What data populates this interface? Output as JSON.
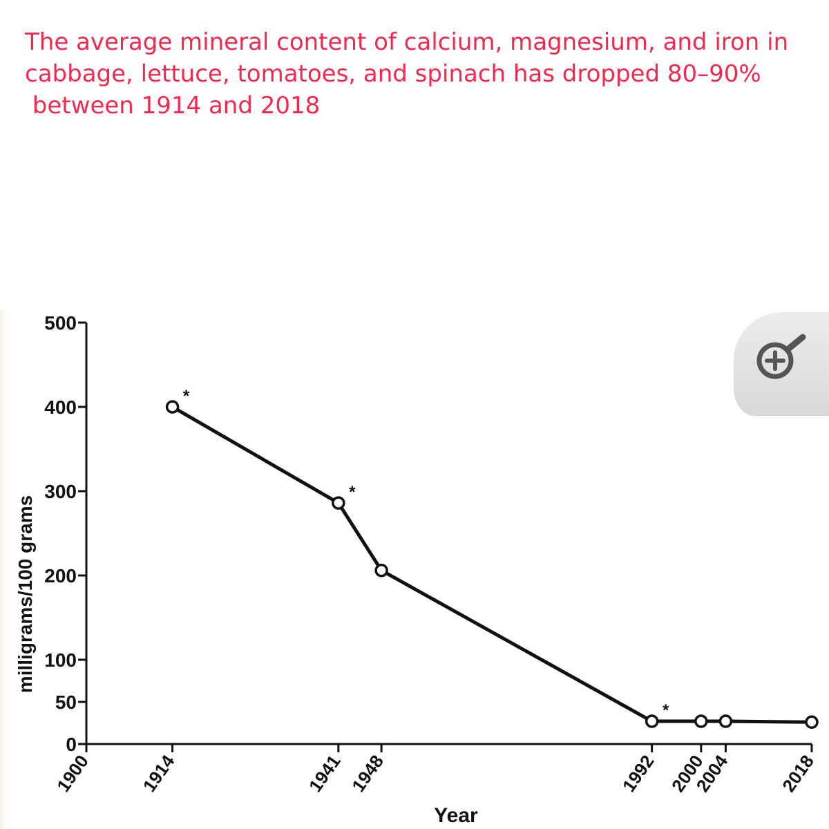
{
  "headline": {
    "line1": "The average mineral content of calcium, magnesium, and iron in",
    "line2": "cabbage, lettuce, tomatoes, and spinach has dropped 80–90%",
    "line3": " between 1914 and 2018"
  },
  "zoom_button": {
    "icon": "magnify-plus-icon"
  },
  "colors": {
    "headline": "#f2294f",
    "line": "#111111"
  },
  "chart_data": {
    "type": "line",
    "title": "",
    "xlabel": "Year",
    "ylabel": "milligrams/100 grams",
    "xlim": [
      1900,
      2018
    ],
    "ylim": [
      0,
      500
    ],
    "x_ticks": [
      1900,
      1914,
      1941,
      1948,
      1992,
      2000,
      2004,
      2018
    ],
    "y_ticks": [
      0,
      50,
      100,
      200,
      300,
      400,
      500
    ],
    "series": [
      {
        "x": [
          1914,
          1941,
          1948,
          1992,
          2000,
          2004,
          2018
        ],
        "y": [
          400,
          286,
          206,
          27,
          27,
          27,
          26
        ],
        "marker": "open-circle"
      }
    ],
    "annotations": [
      {
        "x": 1914,
        "text": "*"
      },
      {
        "x": 1941,
        "text": "*"
      },
      {
        "x": 1992,
        "text": "*"
      }
    ],
    "grid": false
  }
}
